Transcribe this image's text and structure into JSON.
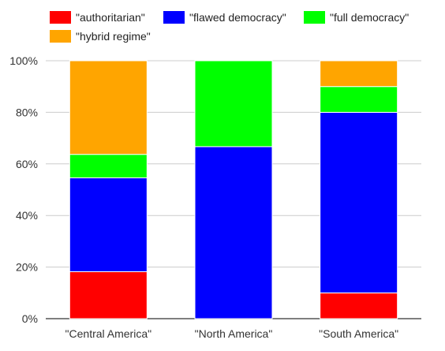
{
  "chart_data": {
    "type": "bar",
    "stacked": true,
    "categories": [
      "\"Central America\"",
      "\"North America\"",
      "\"South America\""
    ],
    "series": [
      {
        "name": "\"authoritarian\"",
        "color": "#ff0000",
        "values": [
          18.2,
          0,
          10
        ]
      },
      {
        "name": "\"flawed democracy\"",
        "color": "#0000ff",
        "values": [
          36.4,
          66.7,
          70
        ]
      },
      {
        "name": "\"full democracy\"",
        "color": "#00ff00",
        "values": [
          9.1,
          33.3,
          10
        ]
      },
      {
        "name": "\"hybrid regime\"",
        "color": "#ffa500",
        "values": [
          36.3,
          0,
          10
        ]
      }
    ],
    "ylim": [
      0,
      100
    ],
    "yticks": [
      "0%",
      "20%",
      "40%",
      "60%",
      "80%",
      "100%"
    ],
    "grid": true,
    "legend_position": "top-left"
  }
}
